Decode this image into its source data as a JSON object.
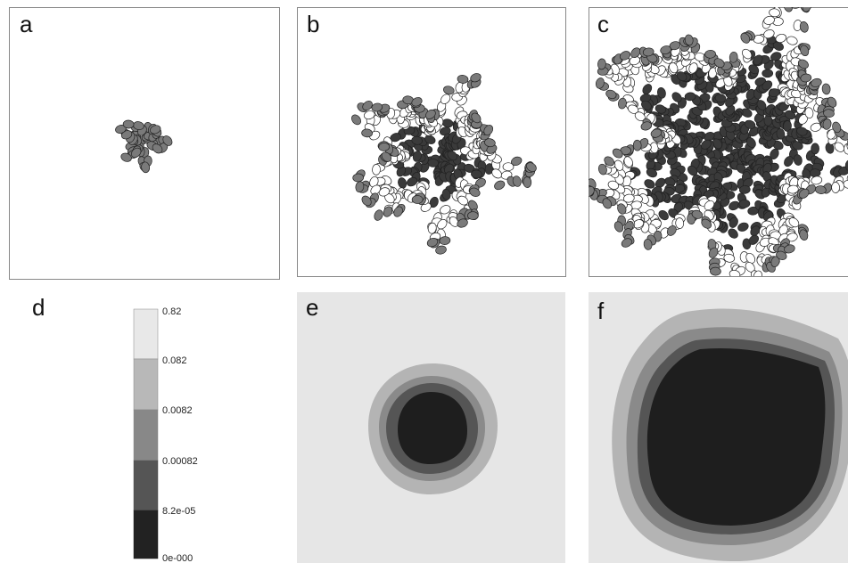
{
  "panels": {
    "a": "a",
    "b": "b",
    "c": "c",
    "d": "d",
    "e": "e",
    "f": "f"
  },
  "colorbar": {
    "ticks": [
      "0.82",
      "0.082",
      "0.0082",
      "0.00082",
      "8.2e-05",
      "0e-000"
    ]
  }
}
